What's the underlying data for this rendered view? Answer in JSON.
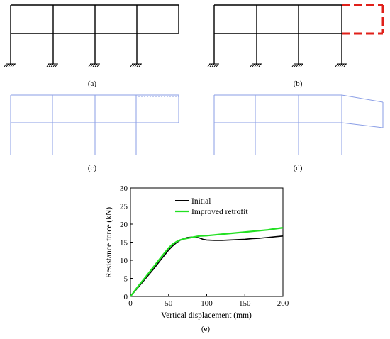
{
  "captions": {
    "a": "(a)",
    "b": "(b)",
    "c": "(c)",
    "d": "(d)",
    "e": "(e)"
  },
  "colors": {
    "frame": "#000000",
    "highlight": "#e0201a",
    "deformed": "#8a9ee6",
    "initial": "#000000",
    "improved": "#22e022"
  },
  "chart_data": {
    "type": "line",
    "xlabel": "Vertical displacement (mm)",
    "ylabel": "Resistance force (kN)",
    "xlim": [
      0,
      200
    ],
    "ylim": [
      0,
      30
    ],
    "xticks": [
      0,
      50,
      100,
      150,
      200
    ],
    "yticks": [
      0,
      5,
      10,
      15,
      20,
      25,
      30
    ],
    "legend_position": "top-left",
    "grid": false,
    "series": [
      {
        "name": "Initial",
        "color": "#000000",
        "x": [
          0,
          10,
          20,
          30,
          40,
          50,
          55,
          60,
          65,
          70,
          75,
          80,
          85,
          90,
          95,
          100,
          110,
          120,
          130,
          140,
          150,
          160,
          170,
          180,
          190,
          200
        ],
        "y": [
          0,
          2.5,
          5.0,
          7.5,
          10.2,
          12.8,
          13.9,
          14.8,
          15.5,
          16.0,
          16.3,
          16.4,
          16.4,
          16.2,
          15.8,
          15.6,
          15.5,
          15.5,
          15.6,
          15.7,
          15.8,
          16.0,
          16.1,
          16.3,
          16.5,
          16.7
        ]
      },
      {
        "name": "Improved retrofit",
        "color": "#22e022",
        "x": [
          0,
          10,
          20,
          30,
          40,
          50,
          55,
          60,
          65,
          70,
          75,
          80,
          85,
          90,
          100,
          110,
          120,
          130,
          140,
          150,
          160,
          170,
          180,
          190,
          200
        ],
        "y": [
          0,
          2.8,
          5.4,
          8.1,
          10.8,
          13.4,
          14.4,
          15.1,
          15.6,
          15.9,
          16.1,
          16.3,
          16.5,
          16.7,
          16.8,
          17.0,
          17.2,
          17.4,
          17.6,
          17.8,
          18.0,
          18.2,
          18.4,
          18.7,
          19.0
        ]
      }
    ]
  }
}
